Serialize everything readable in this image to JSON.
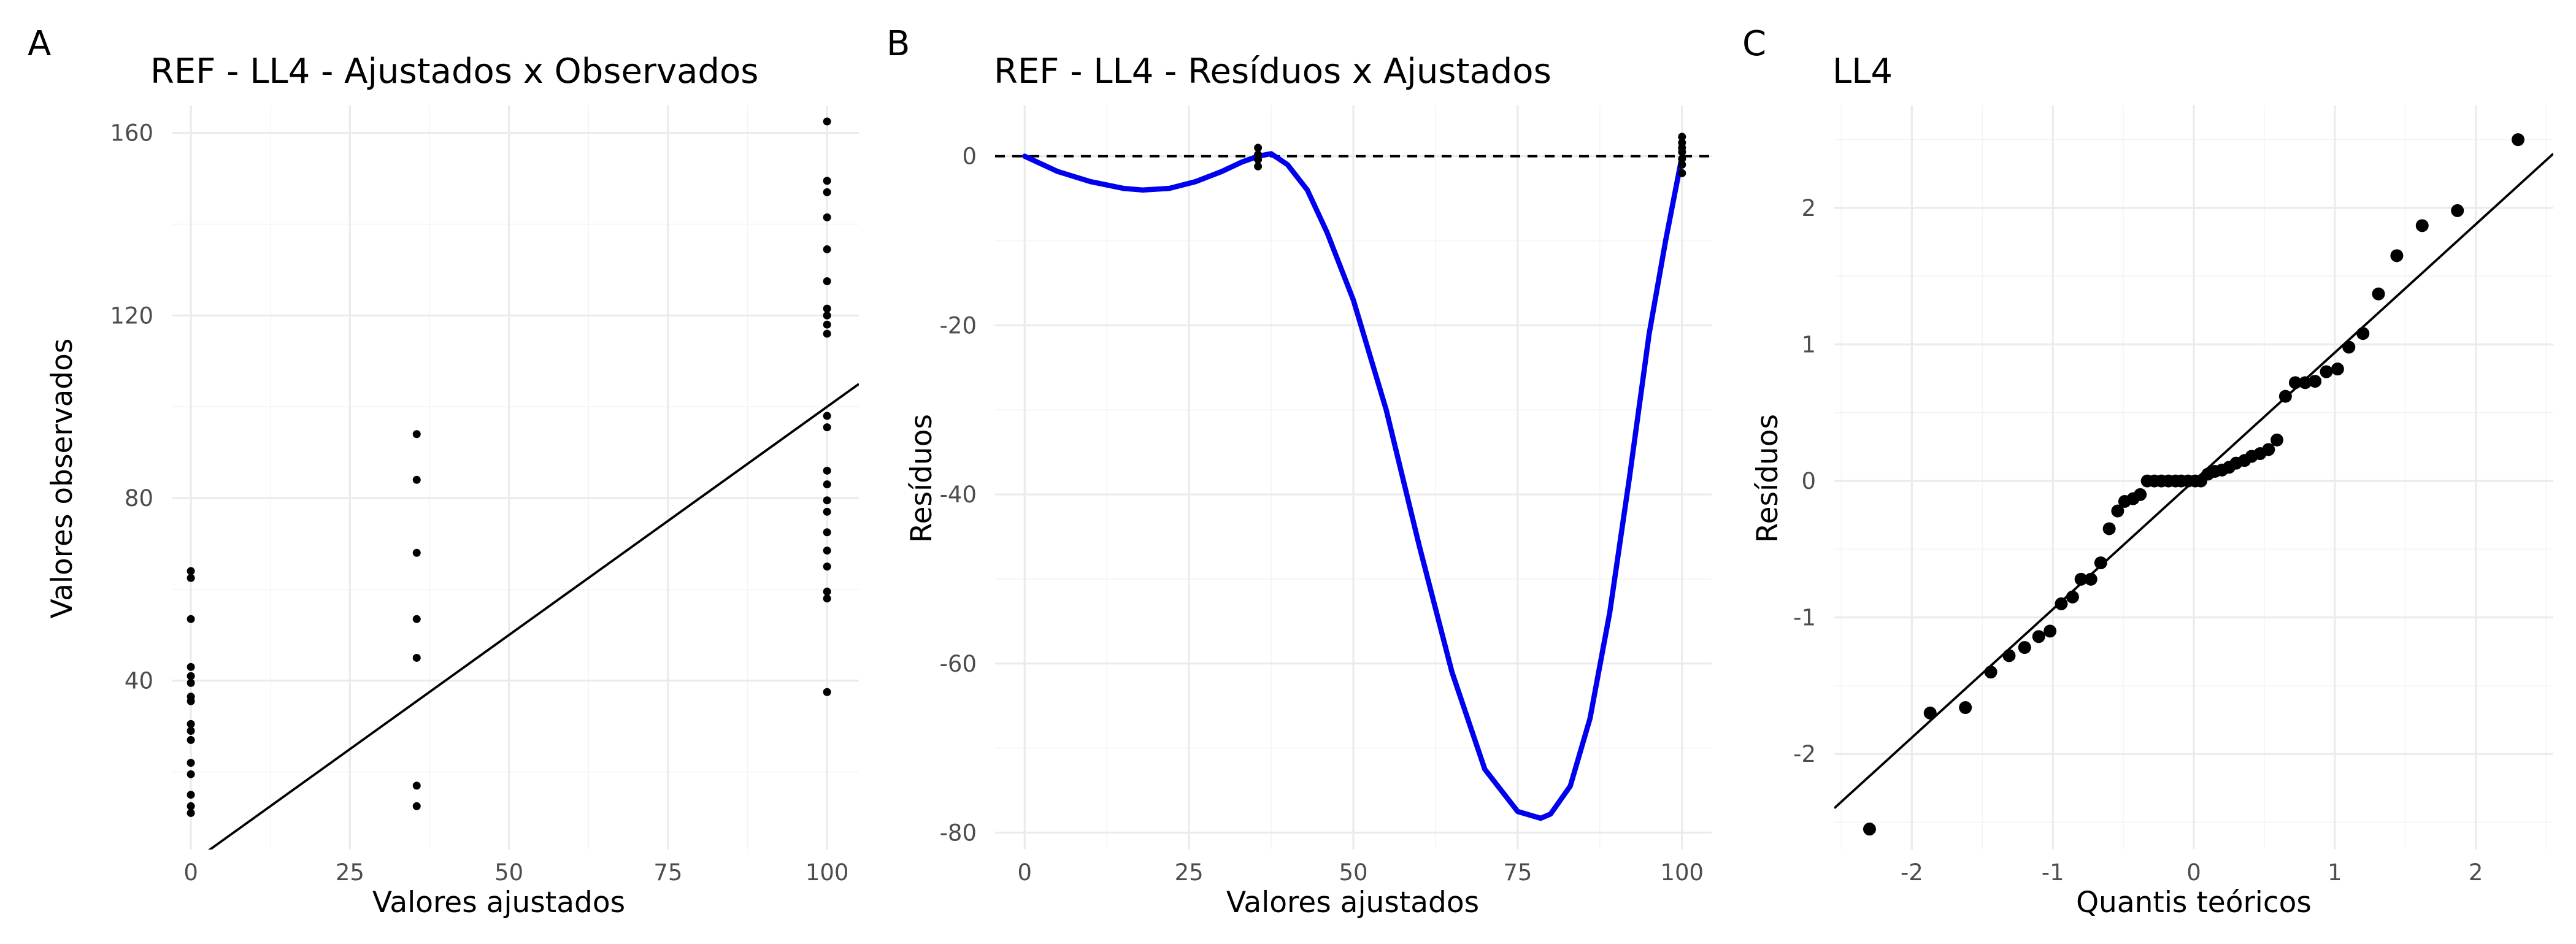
{
  "chart_data": [
    {
      "tag": "A",
      "type": "scatter",
      "title": "REF - LL4 - Ajustados x Observados",
      "xlabel": "Valores ajustados",
      "ylabel": "Valores observados",
      "xlim": [
        -3,
        105
      ],
      "ylim": [
        3,
        166
      ],
      "xticks": [
        0,
        25,
        50,
        75,
        100
      ],
      "yticks": [
        40,
        80,
        120,
        160
      ],
      "points": [
        [
          0,
          64
        ],
        [
          0,
          62.5
        ],
        [
          0,
          53.5
        ],
        [
          0,
          43
        ],
        [
          0,
          41
        ],
        [
          0,
          39.5
        ],
        [
          0,
          36.5
        ],
        [
          0,
          35.5
        ],
        [
          0,
          30.5
        ],
        [
          0,
          29
        ],
        [
          0,
          27
        ],
        [
          0,
          22
        ],
        [
          0,
          19.5
        ],
        [
          0,
          15
        ],
        [
          0,
          12.5
        ],
        [
          0,
          11
        ],
        [
          35.5,
          94
        ],
        [
          35.5,
          84
        ],
        [
          35.5,
          68
        ],
        [
          35.5,
          53.5
        ],
        [
          35.5,
          45
        ],
        [
          35.5,
          17
        ],
        [
          35.5,
          12.5
        ],
        [
          100,
          162.5
        ],
        [
          100,
          149.5
        ],
        [
          100,
          147
        ],
        [
          100,
          141.5
        ],
        [
          100,
          134.5
        ],
        [
          100,
          127.5
        ],
        [
          100,
          121.5
        ],
        [
          100,
          120
        ],
        [
          100,
          118
        ],
        [
          100,
          116
        ],
        [
          100,
          98
        ],
        [
          100,
          95.5
        ],
        [
          100,
          86
        ],
        [
          100,
          83
        ],
        [
          100,
          79.5
        ],
        [
          100,
          77
        ],
        [
          100,
          72.5
        ],
        [
          100,
          68.5
        ],
        [
          100,
          65
        ],
        [
          100,
          59.5
        ],
        [
          100,
          58
        ],
        [
          100,
          37.5
        ]
      ],
      "reference_line": {
        "intercept": 0,
        "slope": 1
      }
    },
    {
      "tag": "B",
      "type": "line",
      "title": "REF - LL4 - Resíduos x Ajustados",
      "xlabel": "Valores ajustados",
      "ylabel": "Resíduos",
      "xlim": [
        -4.5,
        104.5
      ],
      "ylim": [
        -82,
        6
      ],
      "xticks": [
        0,
        25,
        50,
        75,
        100
      ],
      "yticks": [
        0,
        -20,
        -40,
        -60,
        -80
      ],
      "zero_line": 0,
      "series": [
        {
          "color": "#0000ee",
          "x": [
            0,
            5,
            10,
            15,
            18,
            22,
            26,
            30,
            33,
            35.5,
            37.5,
            40,
            43,
            46,
            50,
            55,
            60,
            65,
            70,
            75,
            78.5,
            80,
            83,
            86,
            89,
            92,
            95,
            97.5,
            100
          ],
          "y": [
            0,
            -1.8,
            -3,
            -3.8,
            -4,
            -3.8,
            -3,
            -1.8,
            -0.7,
            0,
            0.3,
            -1,
            -4,
            -9,
            -17,
            -30,
            -46,
            -61,
            -72.5,
            -77.5,
            -78.3,
            -77.8,
            -74.5,
            -66.5,
            -54,
            -38,
            -21,
            -10,
            0
          ]
        }
      ],
      "points": [
        [
          35.5,
          1
        ],
        [
          35.5,
          0.2
        ],
        [
          35.5,
          -0.4
        ],
        [
          35.5,
          -1.2
        ],
        [
          100,
          2.3
        ],
        [
          100,
          1.6
        ],
        [
          100,
          1
        ],
        [
          100,
          0.5
        ],
        [
          100,
          -0.3
        ],
        [
          100,
          -1
        ],
        [
          100,
          -2
        ]
      ]
    },
    {
      "tag": "C",
      "type": "scatter",
      "title": "LL4",
      "xlabel": "Quantis teóricos",
      "ylabel": "Resíduos",
      "xlim": [
        -2.55,
        2.55
      ],
      "ylim": [
        -2.7,
        2.75
      ],
      "xticks": [
        -2,
        -1,
        0,
        1,
        2
      ],
      "yticks": [
        2,
        1,
        0,
        -1,
        -2
      ],
      "points": [
        [
          -2.3,
          -2.55
        ],
        [
          -1.87,
          -1.7
        ],
        [
          -1.62,
          -1.66
        ],
        [
          -1.44,
          -1.4
        ],
        [
          -1.31,
          -1.28
        ],
        [
          -1.2,
          -1.22
        ],
        [
          -1.1,
          -1.14
        ],
        [
          -1.02,
          -1.1
        ],
        [
          -0.94,
          -0.9
        ],
        [
          -0.86,
          -0.85
        ],
        [
          -0.8,
          -0.72
        ],
        [
          -0.73,
          -0.72
        ],
        [
          -0.66,
          -0.6
        ],
        [
          -0.6,
          -0.35
        ],
        [
          -0.54,
          -0.22
        ],
        [
          -0.49,
          -0.15
        ],
        [
          -0.43,
          -0.13
        ],
        [
          -0.38,
          -0.1
        ],
        [
          -0.33,
          0
        ],
        [
          -0.28,
          0
        ],
        [
          -0.23,
          0
        ],
        [
          -0.18,
          0
        ],
        [
          -0.13,
          0
        ],
        [
          -0.09,
          0
        ],
        [
          -0.04,
          0
        ],
        [
          0.01,
          0
        ],
        [
          0.05,
          0
        ],
        [
          0.1,
          0.05
        ],
        [
          0.15,
          0.07
        ],
        [
          0.2,
          0.08
        ],
        [
          0.25,
          0.1
        ],
        [
          0.3,
          0.13
        ],
        [
          0.36,
          0.15
        ],
        [
          0.41,
          0.18
        ],
        [
          0.47,
          0.2
        ],
        [
          0.53,
          0.23
        ],
        [
          0.59,
          0.3
        ],
        [
          0.65,
          0.62
        ],
        [
          0.72,
          0.72
        ],
        [
          0.79,
          0.72
        ],
        [
          0.86,
          0.73
        ],
        [
          0.94,
          0.8
        ],
        [
          1.02,
          0.82
        ],
        [
          1.1,
          0.98
        ],
        [
          1.2,
          1.08
        ],
        [
          1.31,
          1.37
        ],
        [
          1.44,
          1.65
        ],
        [
          1.62,
          1.87
        ],
        [
          1.87,
          1.98
        ],
        [
          2.3,
          2.5
        ]
      ],
      "reference_line": {
        "intercept": 0,
        "slope": 0.94
      }
    }
  ]
}
